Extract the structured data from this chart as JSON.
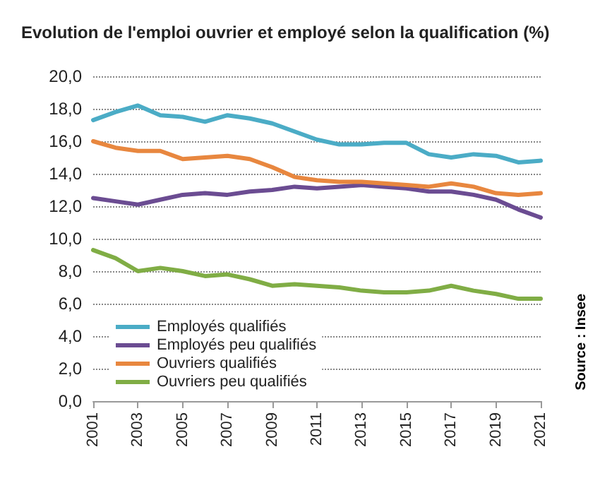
{
  "chart_data": {
    "type": "line",
    "title": "Evolution de l'emploi ouvrier et employé selon la qualification (%)",
    "x": [
      2001,
      2002,
      2003,
      2004,
      2005,
      2006,
      2007,
      2008,
      2009,
      2010,
      2011,
      2012,
      2013,
      2014,
      2015,
      2016,
      2017,
      2018,
      2019,
      2020,
      2021
    ],
    "series": [
      {
        "name": "Employés qualifiés",
        "color": "#4bacc6",
        "values": [
          17.3,
          17.8,
          18.2,
          17.6,
          17.5,
          17.2,
          17.6,
          17.4,
          17.1,
          16.6,
          16.1,
          15.8,
          15.8,
          15.9,
          15.9,
          15.2,
          15.0,
          15.2,
          15.1,
          14.7,
          14.8
        ]
      },
      {
        "name": "Employés peu qualifiés",
        "color": "#6b4c92",
        "values": [
          12.5,
          12.3,
          12.1,
          12.4,
          12.7,
          12.8,
          12.7,
          12.9,
          13.0,
          13.2,
          13.1,
          13.2,
          13.3,
          13.2,
          13.1,
          12.9,
          12.9,
          12.7,
          12.4,
          11.8,
          11.3
        ]
      },
      {
        "name": "Ouvriers qualifiés",
        "color": "#e8873f",
        "values": [
          16.0,
          15.6,
          15.4,
          15.4,
          14.9,
          15.0,
          15.1,
          14.9,
          14.4,
          13.8,
          13.6,
          13.5,
          13.5,
          13.4,
          13.3,
          13.2,
          13.4,
          13.2,
          12.8,
          12.7,
          12.8
        ]
      },
      {
        "name": "Ouvriers peu qualifiés",
        "color": "#80ad45",
        "values": [
          9.3,
          8.8,
          8.0,
          8.2,
          8.0,
          7.7,
          7.8,
          7.5,
          7.1,
          7.2,
          7.1,
          7.0,
          6.8,
          6.7,
          6.7,
          6.8,
          7.1,
          6.8,
          6.6,
          6.3,
          6.3
        ]
      }
    ],
    "xlim": [
      2001,
      2021
    ],
    "xticks": [
      2001,
      2003,
      2005,
      2007,
      2009,
      2011,
      2013,
      2015,
      2017,
      2019,
      2021
    ],
    "ylim": [
      0,
      20
    ],
    "yticks": [
      {
        "value": 0,
        "label": "0,0"
      },
      {
        "value": 2,
        "label": "2,0"
      },
      {
        "value": 4,
        "label": "4,0"
      },
      {
        "value": 6,
        "label": "6,0"
      },
      {
        "value": 8,
        "label": "8,0"
      },
      {
        "value": 10,
        "label": "10,0"
      },
      {
        "value": 12,
        "label": "12,0"
      },
      {
        "value": 14,
        "label": "14,0"
      },
      {
        "value": 16,
        "label": "16,0"
      },
      {
        "value": 18,
        "label": "18,0"
      },
      {
        "value": 20,
        "label": "20,0"
      }
    ],
    "grid": "y",
    "legend": "bottom left",
    "marker": "none",
    "line_style": "solid",
    "annotations": [
      "Source : Insee"
    ]
  }
}
